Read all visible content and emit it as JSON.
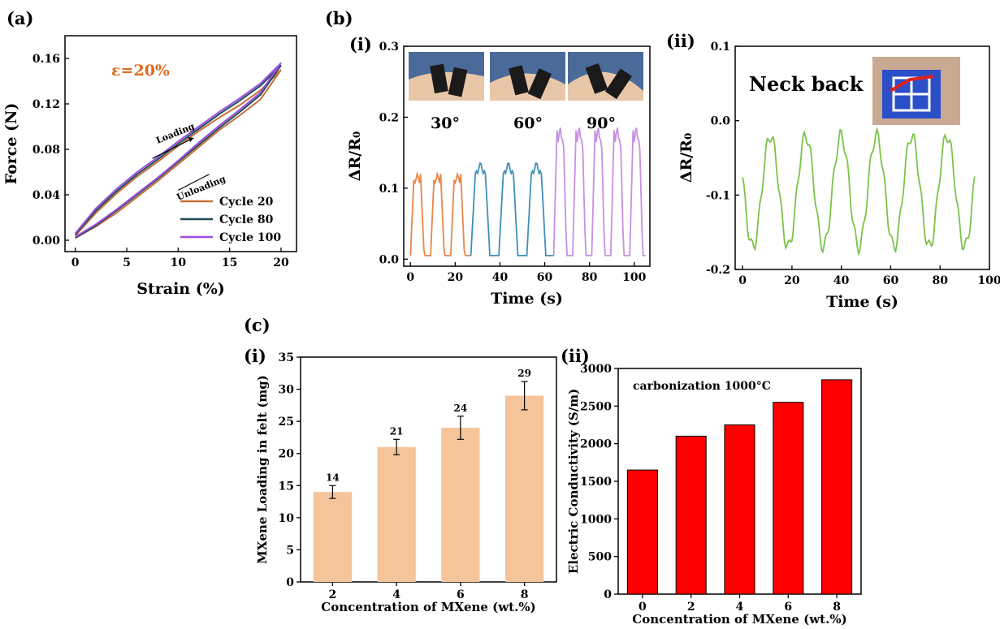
{
  "panel_labels": {
    "a": "(a)",
    "b": "(b)",
    "b_i": "(i)",
    "b_ii": "(ii)",
    "c": "(c)",
    "c_i": "(i)",
    "c_ii": "(ii)"
  },
  "colors": {
    "cycle20": "#c8703a",
    "cycle80": "#1f4e5a",
    "cycle100": "#9b4fe0",
    "angle30": "#e8874a",
    "angle60": "#3e8fb8",
    "angle90": "#c78fe6",
    "neck": "#7cc24a",
    "loading_bar": "#f6c49a",
    "conductivity_bar": "#ff0000",
    "annotation": "#e06a1e"
  },
  "chart_data": [
    {
      "id": "a",
      "type": "line",
      "xlabel": "Strain (%)",
      "ylabel": "Force (N)",
      "xlim": [
        -1,
        21.5
      ],
      "ylim": [
        -0.01,
        0.18
      ],
      "xticks": [
        0,
        5,
        10,
        15,
        20
      ],
      "yticks": [
        0.0,
        0.04,
        0.08,
        0.12,
        0.16
      ],
      "ytick_labels": [
        "0.00",
        "0.04",
        "0.08",
        "0.12",
        "0.16"
      ],
      "annotation": "ε=20%",
      "arrow_labels": [
        "Loading",
        "Unloading"
      ],
      "series": [
        {
          "name": "Cycle 20",
          "color_key": "cycle20",
          "loading": [
            [
              0,
              0.004
            ],
            [
              2,
              0.024
            ],
            [
              4,
              0.041
            ],
            [
              6,
              0.056
            ],
            [
              8,
              0.069
            ],
            [
              10,
              0.083
            ],
            [
              12,
              0.096
            ],
            [
              14,
              0.108
            ],
            [
              16,
              0.119
            ],
            [
              18,
              0.132
            ],
            [
              20,
              0.15
            ]
          ],
          "unloading": [
            [
              20,
              0.15
            ],
            [
              18,
              0.124
            ],
            [
              16,
              0.11
            ],
            [
              14,
              0.097
            ],
            [
              12,
              0.082
            ],
            [
              10,
              0.067
            ],
            [
              8,
              0.052
            ],
            [
              6,
              0.038
            ],
            [
              4,
              0.024
            ],
            [
              2,
              0.012
            ],
            [
              0,
              0.002
            ]
          ]
        },
        {
          "name": "Cycle 80",
          "color_key": "cycle80",
          "loading": [
            [
              0,
              0.005
            ],
            [
              2,
              0.026
            ],
            [
              4,
              0.043
            ],
            [
              6,
              0.058
            ],
            [
              8,
              0.071
            ],
            [
              10,
              0.085
            ],
            [
              12,
              0.098
            ],
            [
              14,
              0.111
            ],
            [
              16,
              0.123
            ],
            [
              18,
              0.136
            ],
            [
              20,
              0.154
            ]
          ],
          "unloading": [
            [
              20,
              0.154
            ],
            [
              18,
              0.128
            ],
            [
              16,
              0.113
            ],
            [
              14,
              0.099
            ],
            [
              12,
              0.084
            ],
            [
              10,
              0.069
            ],
            [
              8,
              0.054
            ],
            [
              6,
              0.04
            ],
            [
              4,
              0.026
            ],
            [
              2,
              0.013
            ],
            [
              0,
              0.002
            ]
          ]
        },
        {
          "name": "Cycle 100",
          "color_key": "cycle100",
          "loading": [
            [
              0,
              0.006
            ],
            [
              2,
              0.028
            ],
            [
              4,
              0.045
            ],
            [
              6,
              0.06
            ],
            [
              8,
              0.073
            ],
            [
              10,
              0.087
            ],
            [
              12,
              0.1
            ],
            [
              14,
              0.113
            ],
            [
              16,
              0.125
            ],
            [
              18,
              0.138
            ],
            [
              20,
              0.156
            ]
          ],
          "unloading": [
            [
              20,
              0.156
            ],
            [
              18,
              0.13
            ],
            [
              16,
              0.115
            ],
            [
              14,
              0.101
            ],
            [
              12,
              0.086
            ],
            [
              10,
              0.07
            ],
            [
              8,
              0.055
            ],
            [
              6,
              0.041
            ],
            [
              4,
              0.027
            ],
            [
              2,
              0.014
            ],
            [
              0,
              0.003
            ]
          ]
        }
      ]
    },
    {
      "id": "b_i",
      "type": "line",
      "xlabel": "Time (s)",
      "ylabel": "ΔR/R₀",
      "xlim": [
        -3,
        107
      ],
      "ylim": [
        -0.01,
        0.3
      ],
      "xticks": [
        0,
        20,
        40,
        60,
        80,
        100
      ],
      "yticks": [
        0.0,
        0.1,
        0.2,
        0.3
      ],
      "ytick_labels": [
        "0.0",
        "0.1",
        "0.2",
        "0.3"
      ],
      "angle_labels": [
        "30°",
        "60°",
        "90°"
      ],
      "series": [
        {
          "name": "30°",
          "color_key": "angle30",
          "period": 9,
          "start": 0,
          "end": 27,
          "peak": 0.12,
          "base": 0.005
        },
        {
          "name": "60°",
          "color_key": "angle60",
          "period": 12.5,
          "start": 27,
          "end": 64,
          "peak": 0.135,
          "base": 0.005
        },
        {
          "name": "90°",
          "color_key": "angle90",
          "period": 8.5,
          "start": 64,
          "end": 105,
          "peak": 0.185,
          "base": 0.005
        }
      ]
    },
    {
      "id": "b_ii",
      "type": "line",
      "xlabel": "Time (s)",
      "ylabel": "ΔR/R₀",
      "xlim": [
        -3,
        100
      ],
      "ylim": [
        -0.2,
        0.1
      ],
      "xticks": [
        0,
        20,
        40,
        60,
        80,
        100
      ],
      "yticks": [
        -0.2,
        -0.1,
        0.0,
        0.1
      ],
      "ytick_labels": [
        "-0.2",
        "-0.1",
        "0.0",
        "0.1"
      ],
      "annotation": "Neck back",
      "series": [
        {
          "name": "Neck back",
          "color_key": "neck",
          "period": 14.3,
          "start": 0,
          "end": 94,
          "peak": -0.02,
          "base": -0.17
        }
      ]
    },
    {
      "id": "c_i",
      "type": "bar",
      "xlabel": "Concentration of MXene (wt.%)",
      "ylabel": "MXene Loading in felt (mg)",
      "categories": [
        "2",
        "4",
        "6",
        "8"
      ],
      "values": [
        14,
        21,
        24,
        29
      ],
      "errors": [
        1,
        1.2,
        1.8,
        2.2
      ],
      "value_labels": [
        "14",
        "21",
        "24",
        "29"
      ],
      "ylim": [
        0,
        35
      ],
      "yticks": [
        0,
        5,
        10,
        15,
        20,
        25,
        30,
        35
      ]
    },
    {
      "id": "c_ii",
      "type": "bar",
      "xlabel": "Concentration of MXene (wt.%)",
      "ylabel": "Electric Conductivity (S/m)",
      "annotation": "carbonization 1000°C",
      "categories": [
        "0",
        "2",
        "4",
        "6",
        "8"
      ],
      "values": [
        1650,
        2100,
        2250,
        2550,
        2850
      ],
      "ylim": [
        0,
        3000
      ],
      "yticks": [
        0,
        500,
        1000,
        1500,
        2000,
        2500,
        3000
      ]
    }
  ]
}
